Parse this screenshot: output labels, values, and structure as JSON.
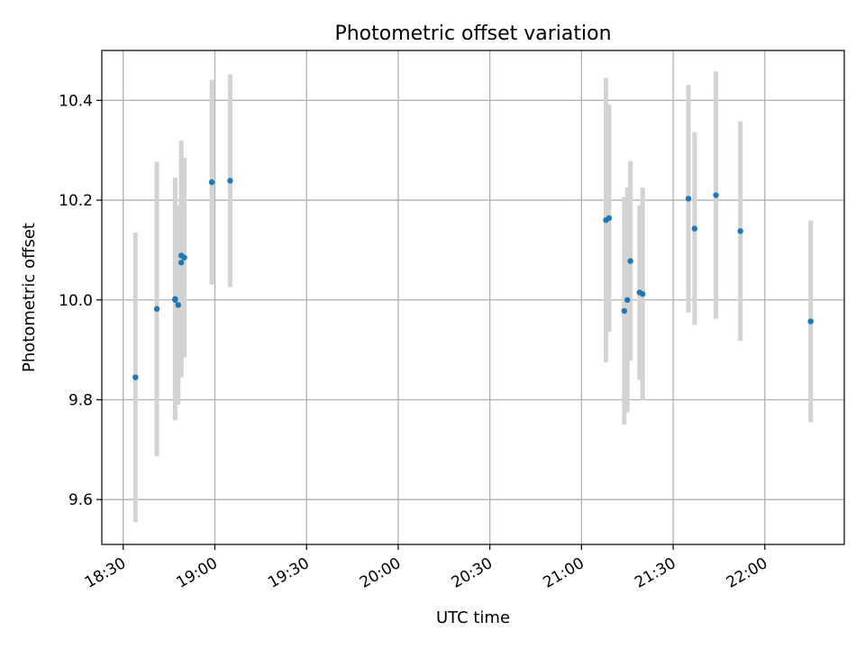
{
  "chart_data": {
    "type": "scatter",
    "title": "Photometric offset variation",
    "xlabel": "UTC time",
    "ylabel": "Photometric offset",
    "x_tick_labels": [
      "18:30",
      "19:00",
      "19:30",
      "20:00",
      "20:30",
      "21:00",
      "21:30",
      "22:00"
    ],
    "y_tick_labels": [
      "9.6",
      "9.8",
      "10.0",
      "10.2",
      "10.4"
    ],
    "x_ticks": [
      "18:30",
      "19:00",
      "19:30",
      "20:00",
      "20:30",
      "21:00",
      "21:30",
      "22:00"
    ],
    "y_ticks": [
      9.6,
      9.8,
      10.0,
      10.2,
      10.4
    ],
    "xlim": [
      "18:23",
      "22:26"
    ],
    "ylim": [
      9.51,
      10.5
    ],
    "grid": true,
    "points": [
      {
        "x": "18:34",
        "y": 9.845,
        "yerr": 0.29
      },
      {
        "x": "18:41",
        "y": 9.982,
        "yerr": 0.295
      },
      {
        "x": "18:47",
        "y": 10.002,
        "yerr": 0.243
      },
      {
        "x": "18:47",
        "y": 10.0,
        "yerr": 0.21
      },
      {
        "x": "18:48",
        "y": 9.99,
        "yerr": 0.2
      },
      {
        "x": "18:49",
        "y": 10.075,
        "yerr": 0.23
      },
      {
        "x": "18:49",
        "y": 10.089,
        "yerr": 0.23
      },
      {
        "x": "18:50",
        "y": 10.085,
        "yerr": 0.2
      },
      {
        "x": "18:59",
        "y": 10.236,
        "yerr": 0.205
      },
      {
        "x": "19:05",
        "y": 10.239,
        "yerr": 0.213
      },
      {
        "x": "21:08",
        "y": 10.16,
        "yerr": 0.285
      },
      {
        "x": "21:09",
        "y": 10.164,
        "yerr": 0.228
      },
      {
        "x": "21:14",
        "y": 9.978,
        "yerr": 0.228
      },
      {
        "x": "21:15",
        "y": 10.0,
        "yerr": 0.225
      },
      {
        "x": "21:16",
        "y": 10.078,
        "yerr": 0.2
      },
      {
        "x": "21:19",
        "y": 10.015,
        "yerr": 0.175
      },
      {
        "x": "21:20",
        "y": 10.012,
        "yerr": 0.213
      },
      {
        "x": "21:35",
        "y": 10.203,
        "yerr": 0.228
      },
      {
        "x": "21:37",
        "y": 10.143,
        "yerr": 0.193
      },
      {
        "x": "21:44",
        "y": 10.21,
        "yerr": 0.248
      },
      {
        "x": "21:52",
        "y": 10.138,
        "yerr": 0.22
      },
      {
        "x": "22:15",
        "y": 9.957,
        "yerr": 0.202
      }
    ],
    "marker_color": "#1f77b4",
    "errorbar_color": "#d3d3d3"
  }
}
